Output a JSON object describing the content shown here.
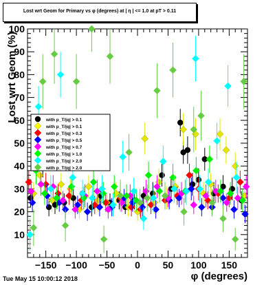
{
  "title": "Lost wrt Geom for Primary vs φ (degrees) at | η | <= 1.0 at pT > 0.11",
  "timestamp": "Tue May 15 10:00:12 2018",
  "chart_data": {
    "type": "scatter",
    "xlabel": "φ (degrees)",
    "ylabel": "Lost wrt Geom (%)",
    "xlim": [
      -180,
      180
    ],
    "ylim": [
      0,
      100
    ],
    "x_ticks": [
      -150,
      -100,
      -50,
      0,
      50,
      100,
      150
    ],
    "x_tick_labels": [
      "−150",
      "−100",
      "−50",
      "0",
      "50",
      "100",
      "150"
    ],
    "y_ticks": [
      10,
      20,
      30,
      40,
      50,
      60,
      70,
      80,
      90,
      100
    ],
    "grid": false,
    "legend_position": "left-middle",
    "legend": [
      {
        "label": "with p_T/|q| > 0.1",
        "color": "#000000",
        "marker": "circle"
      },
      {
        "label": "with p_T/|q| > 0.1",
        "color": "#ffff00",
        "marker": "diamond"
      },
      {
        "label": "with p_T/|q| > 0.3",
        "color": "#ff0000",
        "marker": "diamond"
      },
      {
        "label": "with p_T/|q| > 0.5",
        "color": "#0000ff",
        "marker": "diamond"
      },
      {
        "label": "with p_T/|q| > 0.7",
        "color": "#ff00ff",
        "marker": "diamond"
      },
      {
        "label": "with p_T/|q| > 1.0",
        "color": "#00ff00",
        "marker": "diamond"
      },
      {
        "label": "with p_T/|q| > 2.0",
        "color": "#00ffff",
        "marker": "diamond"
      },
      {
        "label": "with p_T/|q| > 2.0",
        "color": "#66cc44",
        "marker": "diamond"
      }
    ],
    "series": [
      {
        "color": "#000000",
        "marker": "circle",
        "x": [
          -175,
          -155,
          -145,
          -135,
          -120,
          -105,
          -90,
          -75,
          -60,
          -45,
          -30,
          -20,
          -5,
          10,
          25,
          40,
          55,
          70,
          75,
          82,
          90,
          100,
          110,
          125,
          140,
          155,
          170
        ],
        "y": [
          26,
          40,
          22,
          23,
          24,
          26,
          28,
          22,
          27,
          24,
          25,
          22,
          25,
          27,
          28,
          36,
          30,
          59,
          46,
          47,
          32,
          34,
          43,
          28,
          31,
          30,
          25
        ],
        "err": [
          4,
          5,
          4,
          4,
          4,
          4,
          5,
          4,
          4,
          4,
          4,
          3,
          4,
          4,
          5,
          5,
          5,
          6,
          5,
          6,
          5,
          5,
          5,
          5,
          5,
          5,
          4
        ]
      },
      {
        "color": "#e6e600",
        "marker": "diamond",
        "x": [
          -170,
          -160,
          -140,
          -125,
          -110,
          -95,
          -80,
          -65,
          -50,
          -35,
          -15,
          0,
          12,
          28,
          35,
          48,
          62,
          75,
          95,
          108,
          120,
          135,
          145,
          160,
          175
        ],
        "y": [
          28,
          36,
          25,
          32,
          30,
          21,
          31,
          25,
          24,
          28,
          22,
          20,
          52,
          24,
          33,
          26,
          31,
          56,
          54,
          28,
          32,
          54,
          47,
          40,
          27
        ],
        "err": [
          5,
          6,
          5,
          5,
          5,
          4,
          5,
          5,
          4,
          5,
          4,
          4,
          7,
          5,
          6,
          5,
          5,
          7,
          7,
          5,
          5,
          7,
          6,
          6,
          5
        ]
      },
      {
        "color": "#ff0000",
        "marker": "diamond",
        "x": [
          -178,
          -150,
          -130,
          -112,
          -92,
          -70,
          -52,
          -28,
          -10,
          5,
          22,
          45,
          65,
          85,
          100,
          115,
          132,
          150,
          168
        ],
        "y": [
          33,
          32,
          28,
          27,
          25,
          23,
          24,
          26,
          22,
          21,
          23,
          25,
          27,
          36,
          30,
          25,
          28,
          26,
          33
        ],
        "err": [
          5,
          5,
          4,
          4,
          4,
          4,
          4,
          4,
          4,
          4,
          4,
          4,
          4,
          5,
          5,
          4,
          4,
          4,
          5
        ]
      },
      {
        "color": "#0000ff",
        "marker": "diamond",
        "x": [
          -172,
          -148,
          -128,
          -118,
          -98,
          -82,
          -62,
          -42,
          -22,
          -8,
          8,
          30,
          52,
          68,
          88,
          105,
          122,
          140,
          158,
          176
        ],
        "y": [
          24,
          27,
          24,
          21,
          23,
          20,
          22,
          22,
          26,
          24,
          22,
          21,
          25,
          26,
          30,
          22,
          22,
          26,
          21,
          19
        ],
        "err": [
          4,
          5,
          4,
          4,
          4,
          4,
          4,
          4,
          4,
          4,
          4,
          4,
          4,
          4,
          5,
          4,
          4,
          4,
          4,
          4
        ]
      },
      {
        "color": "#ff00ff",
        "marker": "diamond",
        "x": [
          -174,
          -158,
          -138,
          -122,
          -102,
          -86,
          -66,
          -48,
          -26,
          -12,
          14,
          32,
          50,
          72,
          92,
          112,
          128,
          146,
          164,
          178
        ],
        "y": [
          29,
          32,
          31,
          25,
          21,
          27,
          29,
          21,
          24,
          27,
          29,
          31,
          26,
          28,
          23,
          27,
          29,
          24,
          26,
          31
        ],
        "err": [
          5,
          5,
          5,
          4,
          4,
          5,
          5,
          4,
          4,
          5,
          5,
          5,
          4,
          5,
          4,
          5,
          5,
          4,
          5,
          5
        ]
      },
      {
        "color": "#00ee00",
        "marker": "diamond",
        "x": [
          -166,
          -152,
          -132,
          -108,
          -88,
          -72,
          -56,
          -38,
          -18,
          -2,
          18,
          36,
          58,
          78,
          96,
          118,
          136,
          152,
          172
        ],
        "y": [
          38,
          28,
          26,
          31,
          26,
          33,
          28,
          31,
          27,
          25,
          36,
          29,
          35,
          29,
          38,
          43,
          29,
          28,
          25
        ],
        "err": [
          6,
          5,
          5,
          5,
          5,
          6,
          5,
          5,
          5,
          5,
          6,
          5,
          6,
          5,
          6,
          6,
          5,
          5,
          5
        ]
      },
      {
        "color": "#00ffff",
        "marker": "diamond",
        "x": [
          -176,
          -162,
          -142,
          -126,
          -106,
          -90,
          -74,
          -58,
          -40,
          -24,
          -6,
          10,
          26,
          42,
          60,
          80,
          95,
          102,
          116,
          130,
          148,
          162
        ],
        "y": [
          10,
          66,
          30,
          80,
          35,
          28,
          26,
          30,
          23,
          44,
          29,
          17,
          26,
          42,
          30,
          29,
          87,
          30,
          33,
          51,
          75,
          35
        ],
        "err": [
          7,
          9,
          6,
          10,
          6,
          6,
          6,
          6,
          5,
          7,
          6,
          5,
          6,
          7,
          6,
          6,
          10,
          6,
          6,
          8,
          9,
          7
        ]
      },
      {
        "color": "#66cc44",
        "marker": "diamond",
        "x": [
          -170,
          -155,
          -136,
          -118,
          -100,
          -75,
          -55,
          -45,
          -28,
          -14,
          4,
          16,
          32,
          45,
          58,
          76,
          92,
          104,
          122,
          140,
          160,
          174
        ],
        "y": [
          13,
          77,
          89,
          14,
          77,
          100,
          8,
          88,
          27,
          46,
          24,
          26,
          73,
          27,
          82,
          20,
          56,
          62,
          24,
          17,
          8,
          77
        ],
        "err": [
          8,
          12,
          13,
          7,
          12,
          10,
          6,
          12,
          7,
          8,
          6,
          6,
          12,
          6,
          12,
          6,
          10,
          11,
          6,
          6,
          5,
          12
        ]
      }
    ]
  }
}
